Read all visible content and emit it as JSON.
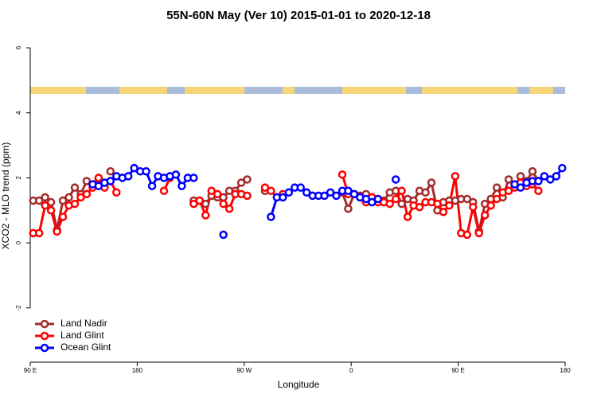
{
  "chart_data": {
    "type": "line",
    "title": "55N-60N May (Ver 10)   2015-01-01 to 2020-12-18",
    "x_label": "Longitude",
    "y_label": "XCO2 - MLO trend (ppm)",
    "xlim": [
      90,
      540
    ],
    "ylim": [
      -3.67,
      6.54
    ],
    "xticks": [
      {
        "value": 90,
        "label": "90 E"
      },
      {
        "value": 180,
        "label": "180"
      },
      {
        "value": 270,
        "label": "90 W"
      },
      {
        "value": 360,
        "label": "0"
      },
      {
        "value": 450,
        "label": "90 E"
      },
      {
        "value": 540,
        "label": "180"
      }
    ],
    "yticks": [
      -2,
      0,
      2,
      4,
      6
    ],
    "legend": "bottom-left",
    "x": [
      92.5,
      97.5,
      102.5,
      107.5,
      112.5,
      117.5,
      122.5,
      127.5,
      132.5,
      137.5,
      142.5,
      147.5,
      152.5,
      157.5,
      162.5,
      167.5,
      172.5,
      177.5,
      182.5,
      187.5,
      192.5,
      197.5,
      202.5,
      207.5,
      212.5,
      217.5,
      222.5,
      227.5,
      232.5,
      237.5,
      242.5,
      247.5,
      252.5,
      257.5,
      262.5,
      267.5,
      272.5,
      277.5,
      282.5,
      287.5,
      292.5,
      297.5,
      302.5,
      307.5,
      312.5,
      317.5,
      322.5,
      327.5,
      332.5,
      337.5,
      342.5,
      347.5,
      352.5,
      357.5,
      362.5,
      367.5,
      372.5,
      377.5,
      382.5,
      387.5,
      392.5,
      397.5,
      402.5,
      407.5,
      412.5,
      417.5,
      422.5,
      427.5,
      432.5,
      437.5,
      442.5,
      447.5,
      452.5,
      457.5,
      462.5,
      467.5,
      472.5,
      477.5,
      482.5,
      487.5,
      492.5,
      497.5,
      502.5,
      507.5,
      512.5,
      517.5,
      522.5,
      527.5,
      532.5,
      537.5
    ],
    "series": [
      {
        "name": "Land Nadir",
        "color": "#a52a2a",
        "values": [
          1.3,
          1.3,
          1.4,
          1.25,
          0.4,
          1.3,
          1.4,
          1.7,
          1.5,
          1.9,
          1.8,
          1.95,
          null,
          2.2,
          null,
          null,
          null,
          null,
          null,
          null,
          null,
          null,
          null,
          null,
          null,
          null,
          null,
          1.3,
          1.3,
          1.2,
          1.45,
          1.4,
          1.4,
          1.6,
          1.6,
          1.85,
          1.95,
          null,
          null,
          1.6,
          null,
          null,
          null,
          null,
          null,
          null,
          null,
          null,
          null,
          null,
          null,
          null,
          1.55,
          1.05,
          1.5,
          1.45,
          1.5,
          1.4,
          1.35,
          1.3,
          1.55,
          1.6,
          1.2,
          1.35,
          1.3,
          1.6,
          1.55,
          1.85,
          1.0,
          1.25,
          1.3,
          1.3,
          1.35,
          1.35,
          1.25,
          0.35,
          1.2,
          1.35,
          1.7,
          1.4,
          1.95,
          1.75,
          2.05,
          1.9,
          2.2,
          1.9,
          null,
          null,
          null,
          null
        ]
      },
      {
        "name": "Land Glint",
        "color": "#ff0000",
        "values": [
          0.3,
          0.3,
          1.15,
          1.0,
          0.35,
          0.8,
          1.15,
          1.2,
          1.4,
          1.5,
          1.7,
          2.0,
          1.7,
          1.9,
          1.55,
          null,
          null,
          null,
          null,
          null,
          null,
          null,
          1.6,
          2.0,
          null,
          null,
          null,
          1.2,
          1.3,
          0.85,
          1.6,
          1.5,
          1.2,
          1.05,
          1.5,
          1.5,
          1.45,
          null,
          null,
          1.7,
          1.6,
          1.4,
          1.5,
          null,
          null,
          null,
          null,
          null,
          null,
          null,
          null,
          null,
          2.1,
          1.5,
          1.5,
          1.4,
          1.25,
          1.4,
          1.25,
          1.25,
          1.2,
          1.35,
          1.6,
          0.8,
          1.15,
          1.1,
          1.25,
          1.25,
          1.2,
          0.95,
          1.15,
          2.05,
          0.3,
          0.25,
          1.1,
          0.3,
          0.85,
          1.15,
          1.35,
          1.55,
          1.6,
          1.7,
          1.85,
          1.75,
          1.8,
          1.6,
          null,
          null,
          null,
          null
        ]
      },
      {
        "name": "Ocean Glint",
        "color": "#0000ff",
        "values": [
          null,
          null,
          null,
          null,
          null,
          null,
          null,
          null,
          null,
          null,
          1.8,
          1.75,
          1.85,
          1.9,
          2.05,
          2.0,
          2.05,
          2.3,
          2.2,
          2.2,
          1.75,
          2.05,
          2.0,
          2.05,
          2.1,
          1.75,
          2.0,
          2.0,
          null,
          null,
          null,
          null,
          0.25,
          null,
          null,
          null,
          null,
          null,
          null,
          null,
          0.8,
          1.4,
          1.4,
          1.55,
          1.7,
          1.7,
          1.55,
          1.45,
          1.45,
          1.45,
          1.55,
          1.45,
          1.6,
          1.6,
          1.5,
          1.4,
          1.35,
          1.25,
          1.35,
          null,
          null,
          1.95,
          null,
          null,
          null,
          null,
          null,
          null,
          null,
          null,
          null,
          null,
          null,
          null,
          null,
          null,
          null,
          null,
          null,
          null,
          null,
          1.8,
          1.7,
          1.85,
          1.9,
          1.9,
          2.05,
          1.95,
          2.05,
          2.3
        ]
      }
    ]
  }
}
